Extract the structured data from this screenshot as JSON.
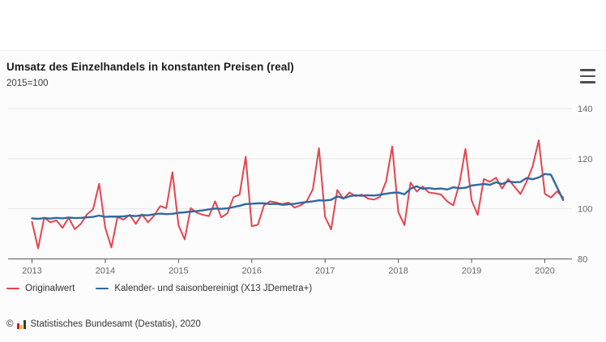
{
  "header": {
    "title": "Umsatz des Einzelhandels in konstanten Preisen (real)",
    "subtitle": "2015=100",
    "menu_icon": "hamburger-menu-icon"
  },
  "footer": {
    "copyright_prefix": "©",
    "logo": "destatis-bars-logo",
    "source_text": "Statistisches Bundesamt (Destatis), 2020"
  },
  "colors": {
    "original_series": "#e6444e",
    "adjusted_series": "#30699e",
    "gridline": "#e6e6e6",
    "axis_line": "#5a5a5a",
    "axis_label": "#666666",
    "title_text": "#1b1b1b"
  },
  "chart_data": {
    "type": "line",
    "title": "Umsatz des Einzelhandels in konstanten Preisen (real)",
    "subtitle": "2015=100",
    "x_unit": "month",
    "x_range": "Januar 2013 bis April 2020",
    "x_tick_labels": [
      "2013",
      "2014",
      "2015",
      "2016",
      "2017",
      "2018",
      "2019",
      "2020"
    ],
    "y_ticks": [
      80,
      100,
      120,
      140
    ],
    "ylim": [
      80,
      140
    ],
    "grid": true,
    "legend_position": "bottom-left",
    "series": [
      {
        "name": "Originalwert",
        "color": "#e6444e",
        "values": [
          94.8,
          84.2,
          96.5,
          94.6,
          95.4,
          92.4,
          96.5,
          91.9,
          94.0,
          97.8,
          99.8,
          110.0,
          92.4,
          84.6,
          96.7,
          95.7,
          97.6,
          94.0,
          97.8,
          94.6,
          97.3,
          101.1,
          100.3,
          114.6,
          93.4,
          87.8,
          100.3,
          98.4,
          97.6,
          97.1,
          103.0,
          96.6,
          98.2,
          104.6,
          105.7,
          120.8,
          93.0,
          93.7,
          101.4,
          103.0,
          102.5,
          101.9,
          102.5,
          100.5,
          101.4,
          103.0,
          107.8,
          124.2,
          96.8,
          91.8,
          107.5,
          104.0,
          106.5,
          105.1,
          105.7,
          104.1,
          103.7,
          104.8,
          111.0,
          124.9,
          98.7,
          93.5,
          110.5,
          106.9,
          108.9,
          106.5,
          106.2,
          105.7,
          103.0,
          101.4,
          110.0,
          123.9,
          103.4,
          97.6,
          111.9,
          110.8,
          112.4,
          108.1,
          111.9,
          108.9,
          105.9,
          110.8,
          117.0,
          127.3,
          106.0,
          104.5,
          107.0,
          104.5
        ]
      },
      {
        "name": "Kalender- und saisonbereinigt (X13 JDemetra+)",
        "color": "#30699e",
        "values": [
          96.2,
          96.0,
          96.3,
          96.1,
          96.4,
          96.2,
          96.5,
          96.3,
          96.4,
          96.6,
          96.8,
          97.3,
          96.8,
          96.9,
          96.9,
          97.0,
          97.3,
          97.1,
          97.5,
          97.4,
          97.8,
          98.1,
          97.9,
          98.0,
          98.4,
          98.6,
          98.9,
          99.1,
          99.4,
          99.8,
          100.1,
          100.0,
          100.2,
          100.7,
          101.2,
          101.9,
          102.0,
          102.2,
          102.2,
          101.9,
          102.0,
          101.6,
          101.8,
          102.0,
          102.4,
          102.7,
          103.0,
          103.4,
          103.3,
          103.6,
          105.0,
          104.2,
          105.0,
          105.4,
          105.2,
          105.4,
          105.3,
          105.6,
          106.0,
          106.4,
          106.5,
          105.8,
          108.0,
          109.0,
          108.0,
          108.3,
          107.9,
          108.1,
          107.7,
          108.6,
          108.2,
          108.4,
          109.3,
          109.6,
          109.9,
          109.6,
          110.6,
          109.9,
          111.0,
          110.6,
          110.7,
          112.3,
          111.8,
          112.5,
          113.9,
          113.6,
          108.6,
          103.5
        ]
      }
    ]
  }
}
